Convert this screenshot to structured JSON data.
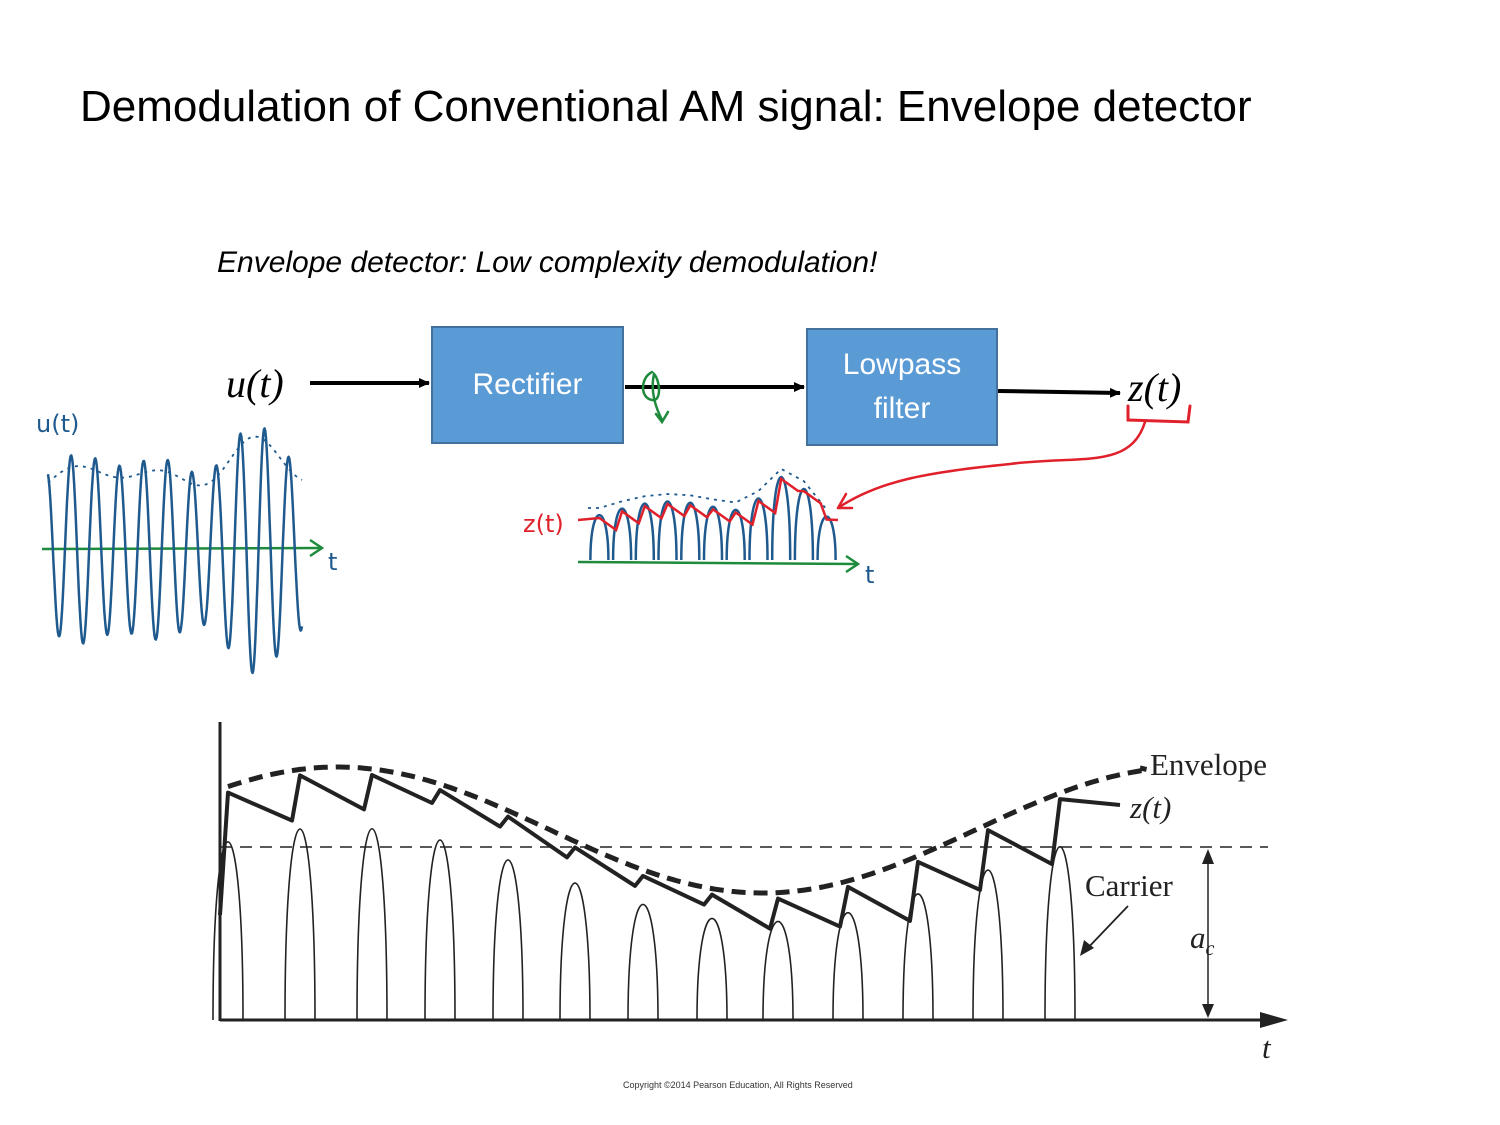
{
  "slide": {
    "title": "Demodulation of Conventional AM signal: Envelope detector",
    "subtitle": "Envelope detector: Low complexity demodulation!"
  },
  "block_diagram": {
    "input_label": "u(t)",
    "rectifier_label": "Rectifier",
    "lowpass_line1": "Lowpass",
    "lowpass_line2": "filter",
    "output_label": "z(t)",
    "block_fill_color": "#5b9bd5",
    "arrow_color": "#000000"
  },
  "annotations": {
    "u_label": "u(t)",
    "t_left": "t",
    "z_label": "z(t)",
    "t_mid": "t",
    "ink_blue": "#1f5a8f",
    "ink_green": "#1e8a3c",
    "ink_red": "#e0202a"
  },
  "figure": {
    "envelope_label": "Envelope",
    "z_label": "z(t)",
    "carrier_label": "Carrier",
    "ac_label": "a",
    "ac_subscript": "c",
    "t_axis_label": "t",
    "copyright": "Copyright ©2014 Pearson Education, All Rights Reserved"
  }
}
